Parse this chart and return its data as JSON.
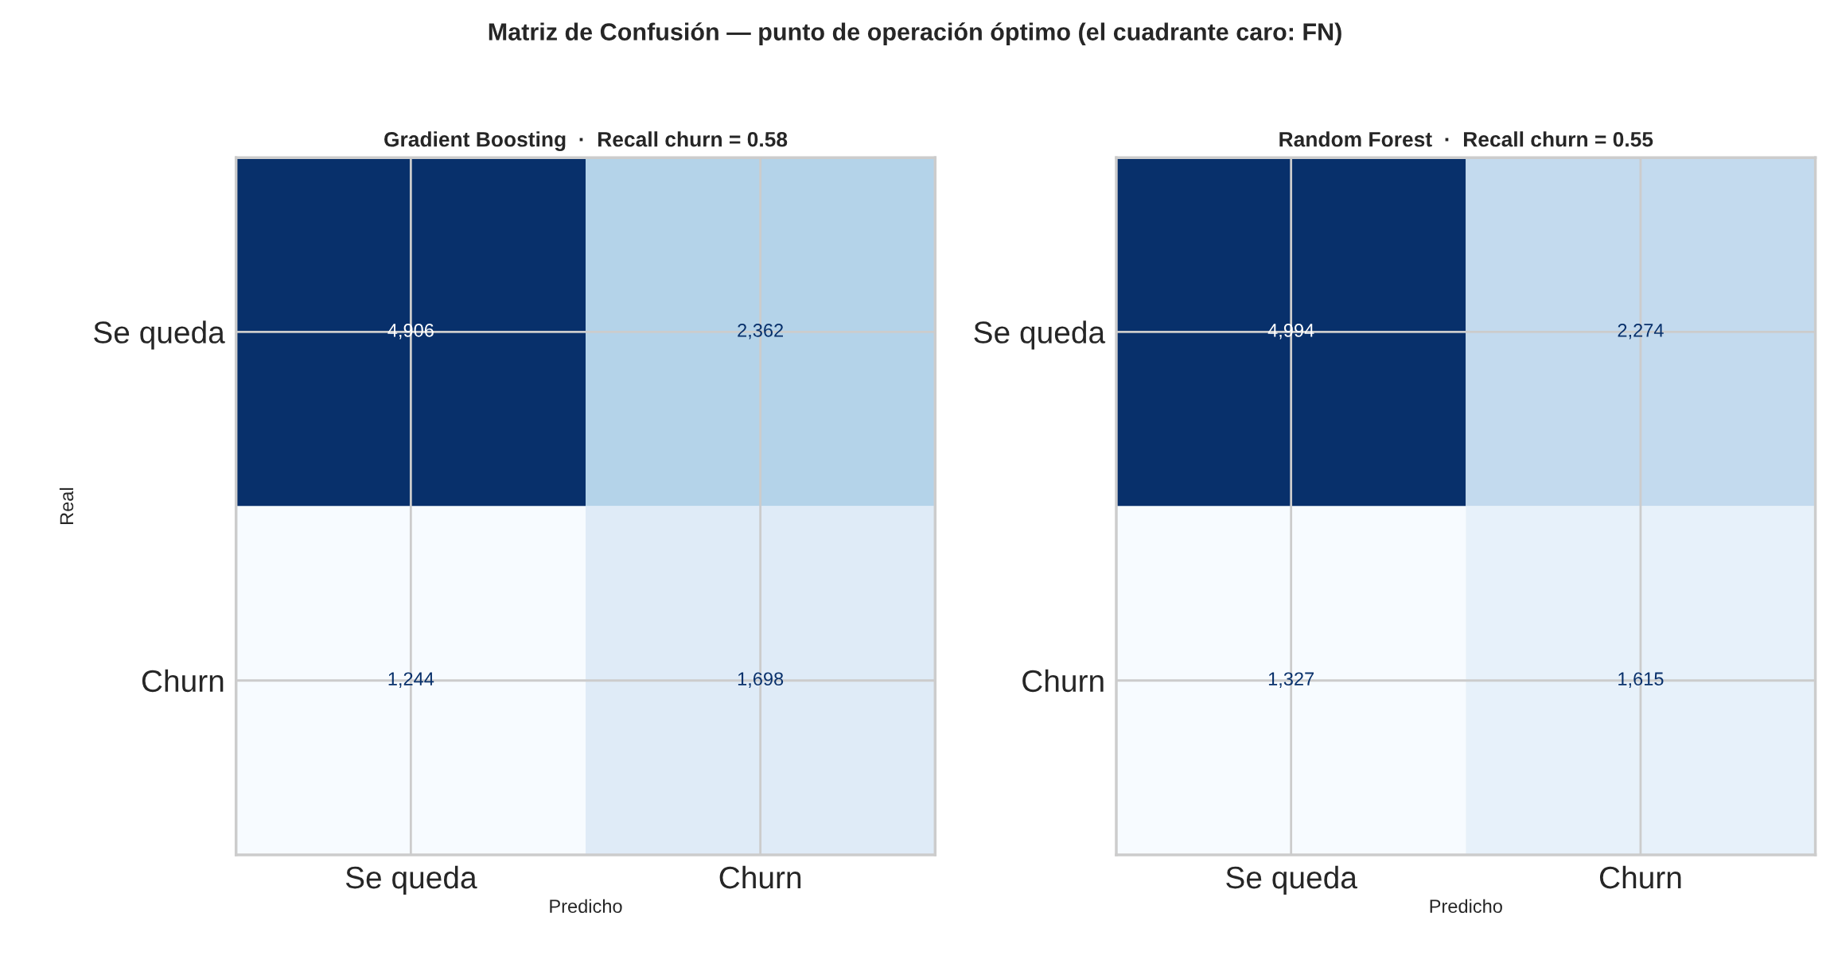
{
  "chart_data": [
    {
      "type": "heatmap",
      "annotations": [
        "Matriz de Confusión — punto de operación óptimo (el cuadrante caro: FN)"
      ],
      "title": "Gradient Boosting  ·  Recall churn = 0.58",
      "xlabel": "Predicho",
      "ylabel": "Real",
      "categories": [
        "Se queda",
        "Churn"
      ],
      "y_categories": [
        "Se queda",
        "Churn"
      ],
      "cells": [
        [
          4906,
          2362
        ],
        [
          1244,
          1698
        ]
      ],
      "cell_labels": [
        [
          "4,906",
          "2,362"
        ],
        [
          "1,244",
          "1,698"
        ]
      ],
      "grid": true
    },
    {
      "type": "heatmap",
      "title": "Random Forest  ·  Recall churn = 0.55",
      "xlabel": "Predicho",
      "categories": [
        "Se queda",
        "Churn"
      ],
      "y_categories": [
        "Se queda",
        "Churn"
      ],
      "cells": [
        [
          4994,
          2274
        ],
        [
          1327,
          1615
        ]
      ],
      "cell_labels": [
        [
          "4,994",
          "2,274"
        ],
        [
          "1,327",
          "1,615"
        ]
      ],
      "grid": true
    }
  ]
}
